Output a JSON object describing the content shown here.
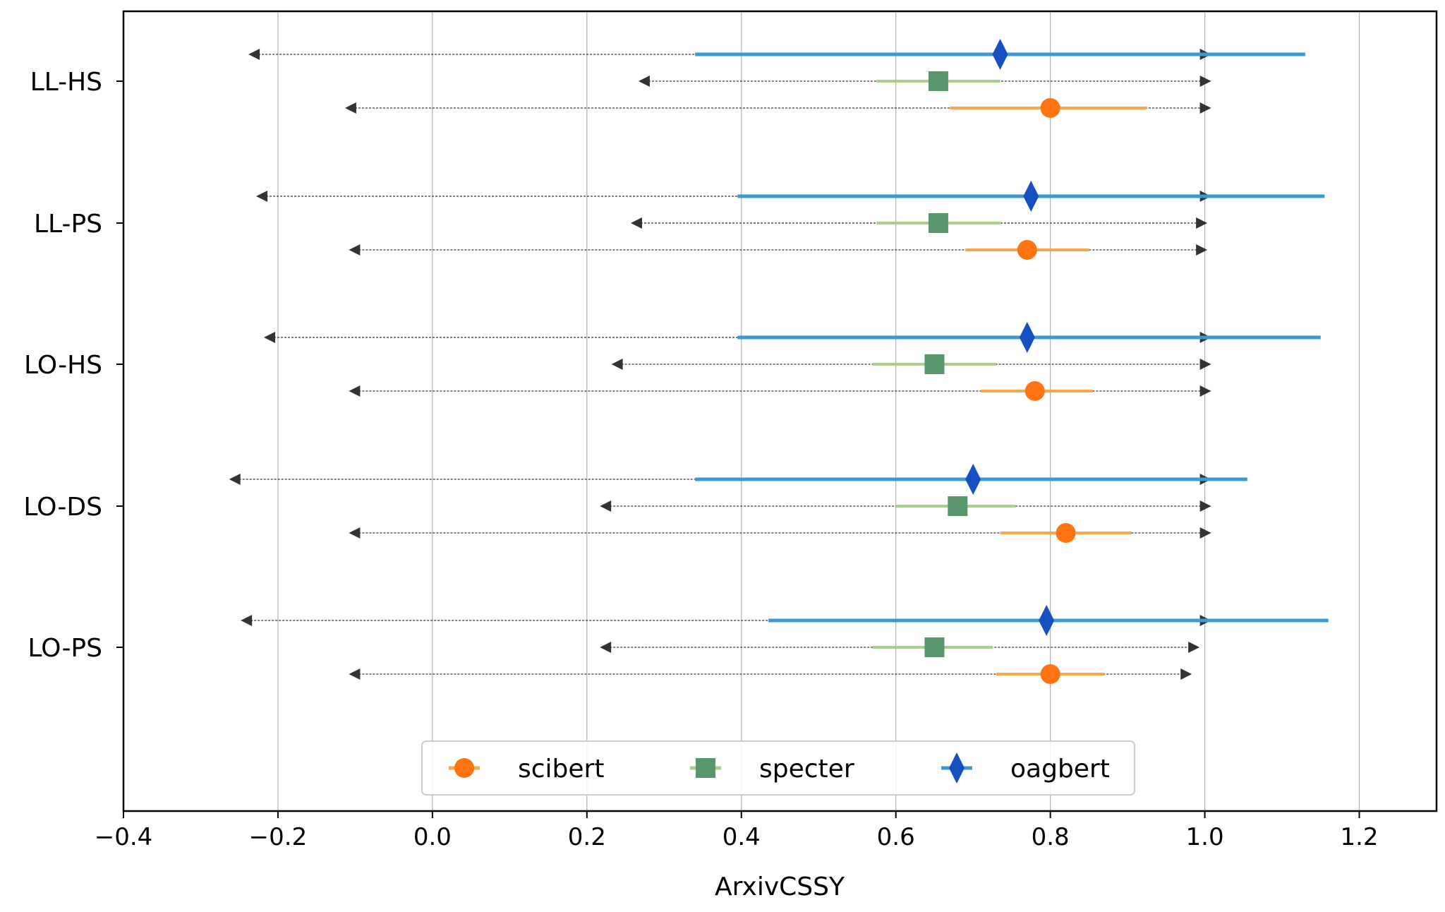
{
  "chart_data": {
    "type": "scatter",
    "title": "",
    "xlabel": "ArxivCSSY",
    "ylabel": "",
    "xlim": [
      -0.4,
      1.3
    ],
    "xticks": [
      -0.4,
      -0.2,
      0.0,
      0.2,
      0.4,
      0.6,
      0.8,
      1.0,
      1.2
    ],
    "xtick_labels": [
      "−0.4",
      "−0.2",
      "0.0",
      "0.2",
      "0.4",
      "0.6",
      "0.8",
      "1.0",
      "1.2"
    ],
    "grid": "vertical",
    "legend": {
      "placement": "lower-center",
      "entries": [
        "scibert",
        "specter",
        "oagbert"
      ]
    },
    "categories": [
      "LL-HS",
      "LL-PS",
      "LO-HS",
      "LO-DS",
      "LO-PS"
    ],
    "series": [
      {
        "name": "scibert",
        "marker": "circle",
        "color": "#ff7311",
        "bar_color": "#f5a94c",
        "points": [
          {
            "category": "LL-HS",
            "value": 0.8,
            "interval": [
              0.67,
              0.925
            ],
            "range": [
              -0.105,
              1.0
            ]
          },
          {
            "category": "LL-PS",
            "value": 0.77,
            "interval": [
              0.69,
              0.85
            ],
            "range": [
              -0.1,
              0.995
            ]
          },
          {
            "category": "LO-HS",
            "value": 0.78,
            "interval": [
              0.71,
              0.855
            ],
            "range": [
              -0.1,
              1.0
            ]
          },
          {
            "category": "LO-DS",
            "value": 0.82,
            "interval": [
              0.735,
              0.905
            ],
            "range": [
              -0.1,
              1.0
            ]
          },
          {
            "category": "LO-PS",
            "value": 0.8,
            "interval": [
              0.73,
              0.87
            ],
            "range": [
              -0.1,
              0.975
            ]
          }
        ]
      },
      {
        "name": "specter",
        "marker": "square",
        "color": "#57976b",
        "bar_color": "#a8d08c",
        "points": [
          {
            "category": "LL-HS",
            "value": 0.655,
            "interval": [
              0.575,
              0.735
            ],
            "range": [
              0.275,
              1.0
            ]
          },
          {
            "category": "LL-PS",
            "value": 0.655,
            "interval": [
              0.575,
              0.735
            ],
            "range": [
              0.265,
              0.995
            ]
          },
          {
            "category": "LO-HS",
            "value": 0.65,
            "interval": [
              0.57,
              0.73
            ],
            "range": [
              0.24,
              1.0
            ]
          },
          {
            "category": "LO-DS",
            "value": 0.68,
            "interval": [
              0.6,
              0.755
            ],
            "range": [
              0.225,
              1.0
            ]
          },
          {
            "category": "LO-PS",
            "value": 0.65,
            "interval": [
              0.57,
              0.725
            ],
            "range": [
              0.225,
              0.985
            ]
          }
        ]
      },
      {
        "name": "oagbert",
        "marker": "diamond",
        "color": "#1450c0",
        "bar_color": "#3b9ad2",
        "points": [
          {
            "category": "LL-HS",
            "value": 0.735,
            "interval": [
              0.34,
              1.13
            ],
            "range": [
              -0.23,
              1.0
            ]
          },
          {
            "category": "LL-PS",
            "value": 0.775,
            "interval": [
              0.395,
              1.155
            ],
            "range": [
              -0.22,
              1.0
            ]
          },
          {
            "category": "LO-HS",
            "value": 0.77,
            "interval": [
              0.395,
              1.15
            ],
            "range": [
              -0.21,
              1.0
            ]
          },
          {
            "category": "LO-DS",
            "value": 0.7,
            "interval": [
              0.34,
              1.055
            ],
            "range": [
              -0.255,
              1.0
            ]
          },
          {
            "category": "LO-PS",
            "value": 0.795,
            "interval": [
              0.435,
              1.16
            ],
            "range": [
              -0.24,
              1.0
            ]
          }
        ]
      }
    ]
  }
}
